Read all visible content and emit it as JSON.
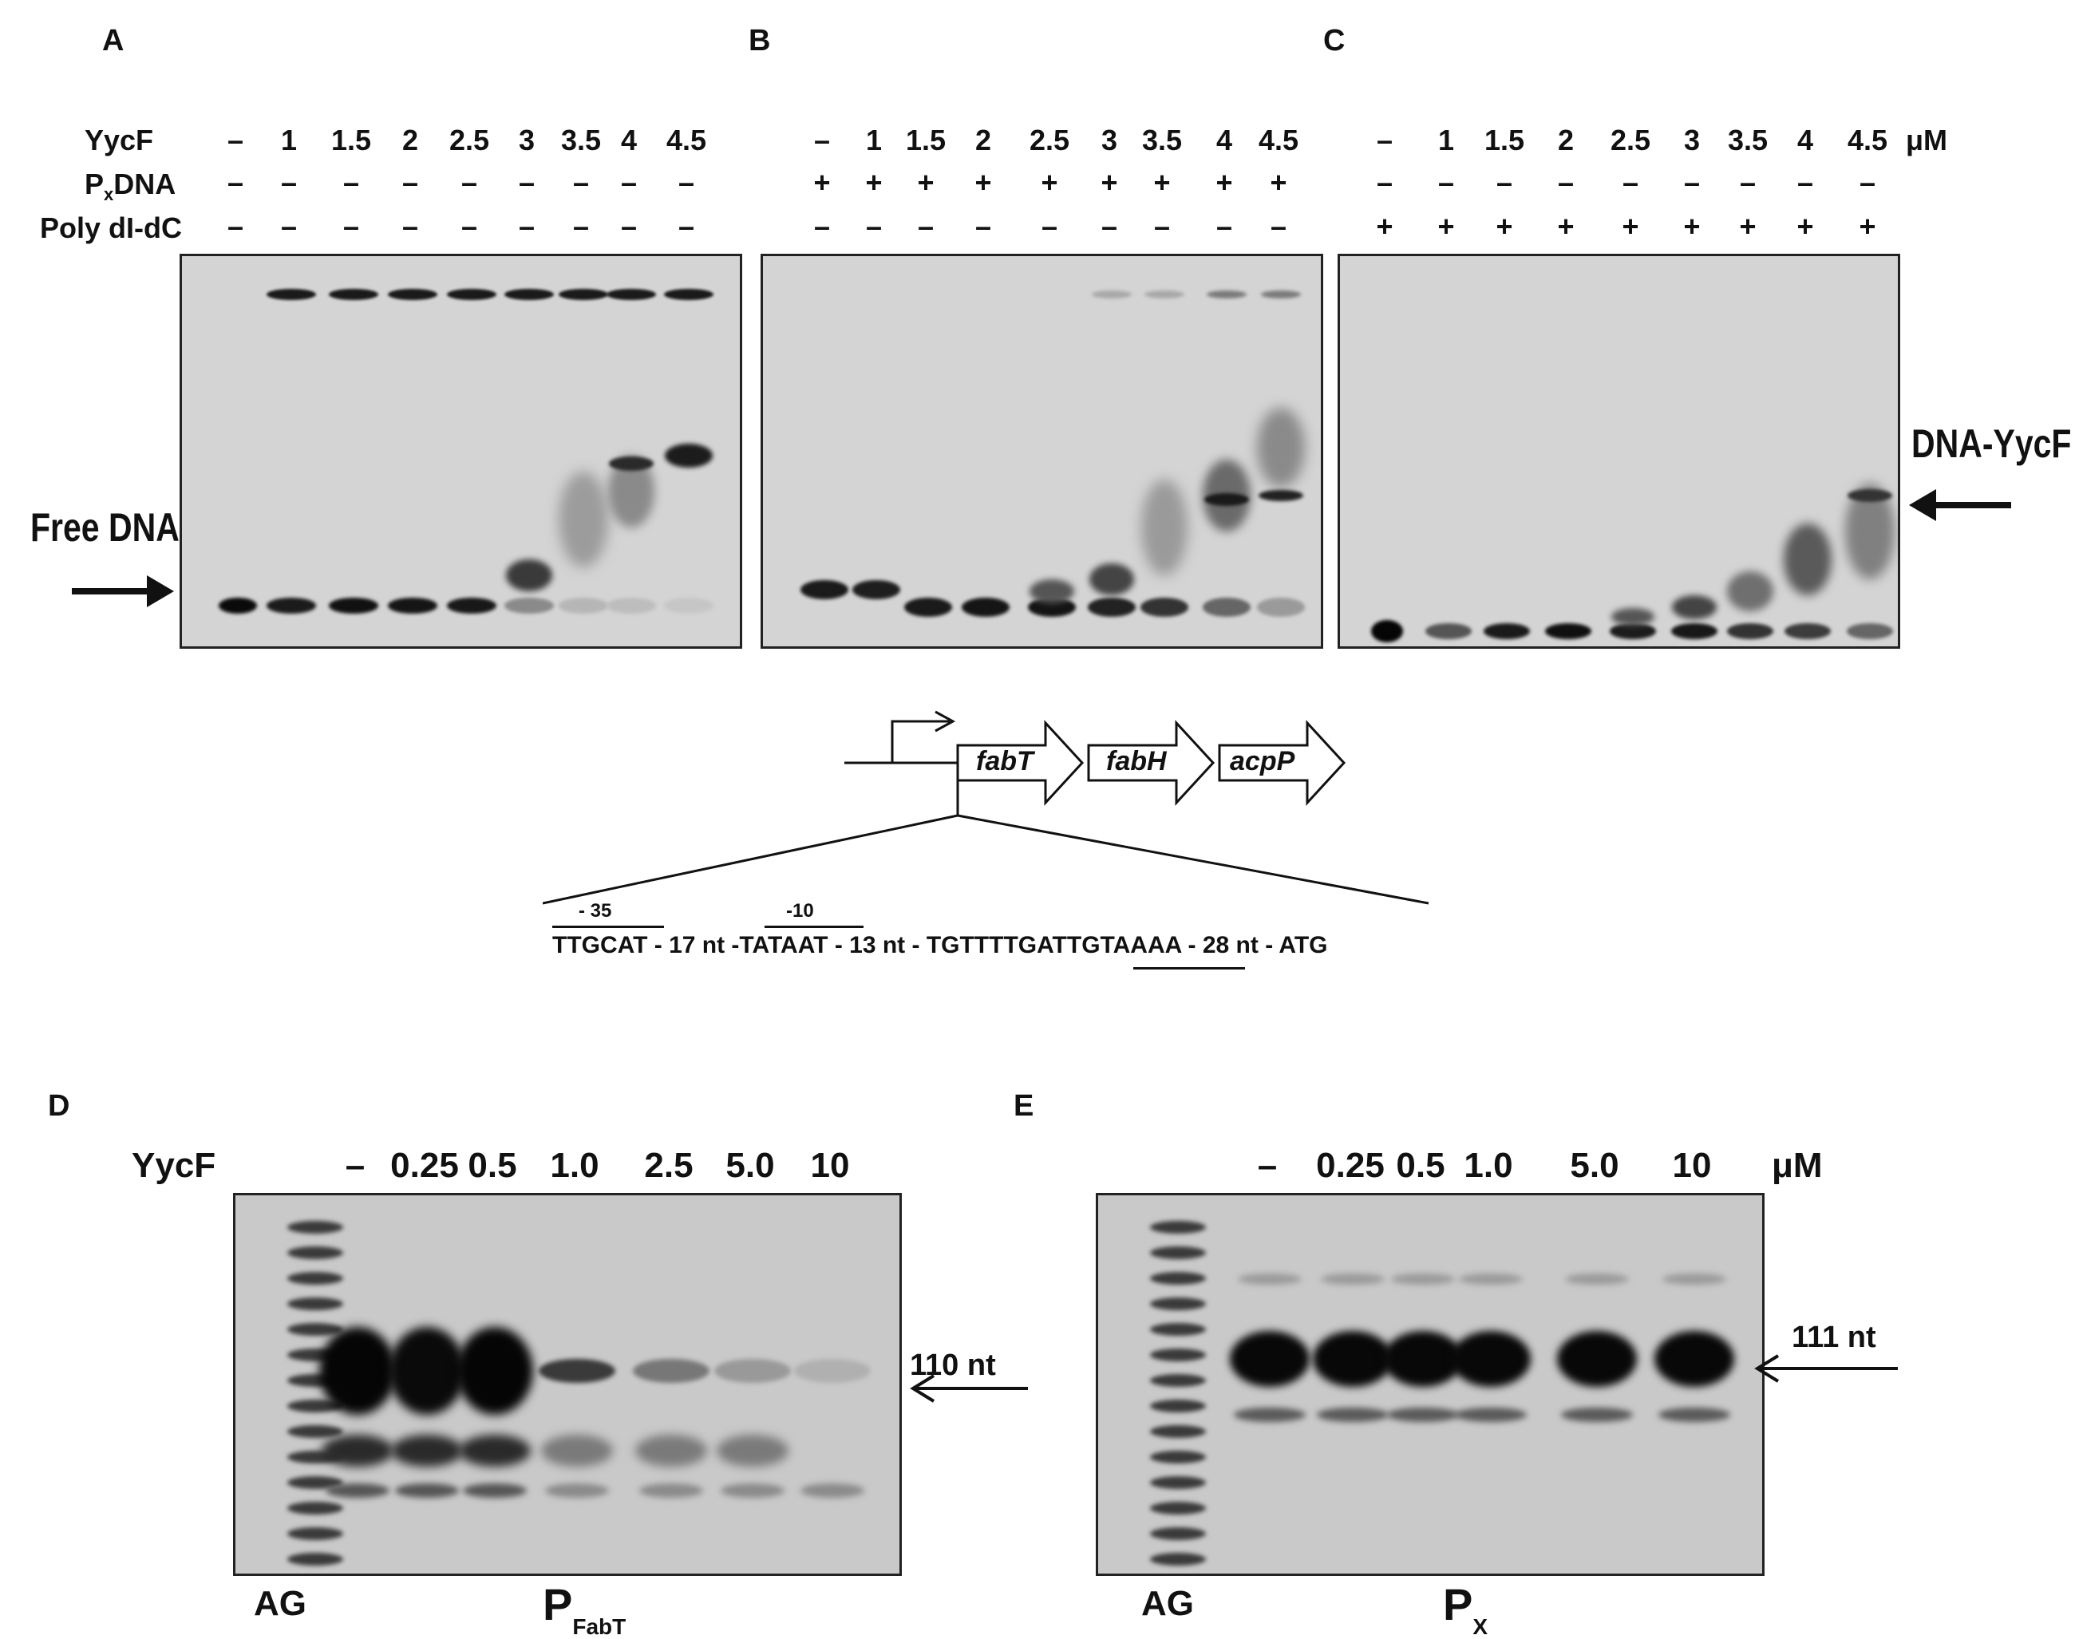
{
  "panels": {
    "A": "A",
    "B": "B",
    "C": "C",
    "D": "D",
    "E": "E"
  },
  "row_labels": {
    "yycf": "YycF",
    "px_dna_p": "P",
    "px_dna_sub": "x",
    "px_dna_rest": "DNA",
    "poly": "Poly dI-dC"
  },
  "panelA": {
    "conc": [
      "–",
      "1",
      "1.5",
      "2",
      "2.5",
      "3",
      "3.5",
      "4",
      "4.5"
    ],
    "px": [
      "–",
      "–",
      "–",
      "–",
      "–",
      "–",
      "–",
      "–",
      "–"
    ],
    "poly": [
      "–",
      "–",
      "–",
      "–",
      "–",
      "–",
      "–",
      "–",
      "–"
    ]
  },
  "panelB": {
    "conc": [
      "–",
      "1",
      "1.5",
      "2",
      "2.5",
      "3",
      "3.5",
      "4",
      "4.5"
    ],
    "px": [
      "+",
      "+",
      "+",
      "+",
      "+",
      "+",
      "+",
      "+",
      "+"
    ],
    "poly": [
      "–",
      "–",
      "–",
      "–",
      "–",
      "–",
      "–",
      "–",
      "–"
    ]
  },
  "panelC": {
    "conc": [
      "–",
      "1",
      "1.5",
      "2",
      "2.5",
      "3",
      "3.5",
      "4",
      "4.5"
    ],
    "unit": "μM",
    "px": [
      "–",
      "–",
      "–",
      "–",
      "–",
      "–",
      "–",
      "–",
      "–"
    ],
    "poly": [
      "+",
      "+",
      "+",
      "+",
      "+",
      "+",
      "+",
      "+",
      "+"
    ]
  },
  "annotations": {
    "free_dna": "Free DNA",
    "dna_yycf": "DNA-YycF"
  },
  "operon": {
    "genes": [
      "fabT",
      "fabH",
      "acpP"
    ],
    "minus35": "- 35",
    "minus10": "-10",
    "sequence": "TTGCAT - 17 nt -TATAAT - 13 nt - TGTTTTGATTGTAAAA - 28 nt - ATG"
  },
  "panelD": {
    "label": "YycF",
    "conc": [
      "–",
      "0.25",
      "0.5",
      "1.0",
      "2.5",
      "5.0",
      "10"
    ],
    "marker": "AG",
    "product": "110 nt",
    "promoter_P": "P",
    "promoter_sub": "FabT"
  },
  "panelE": {
    "conc": [
      "–",
      "0.25",
      "0.5",
      "1.0",
      "5.0",
      "10"
    ],
    "unit": "μM",
    "marker": "AG",
    "product": "111 nt",
    "promoter_P": "P",
    "promoter_sub": "X"
  }
}
